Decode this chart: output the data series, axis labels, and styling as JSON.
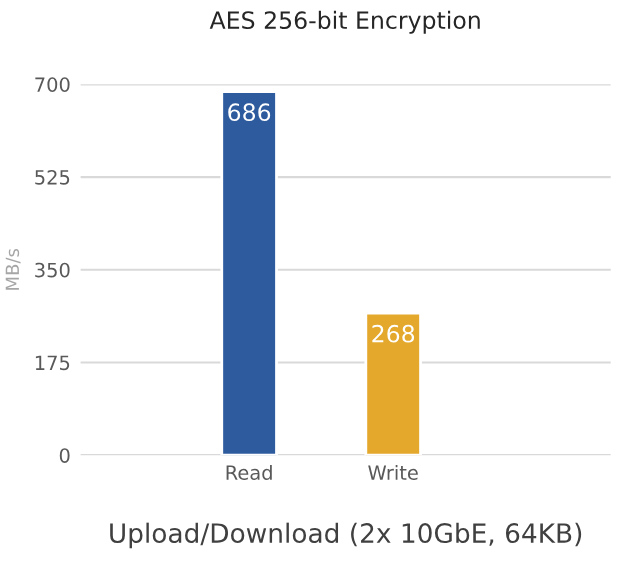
{
  "chart_data": {
    "type": "bar",
    "title": "AES 256-bit Encryption",
    "xlabel": "Upload/Download (2x 10GbE, 64KB)",
    "ylabel": "MB/s",
    "categories": [
      "Read",
      "Write"
    ],
    "values": [
      686,
      268
    ],
    "colors": [
      "#2e5b9e",
      "#e3a82c"
    ],
    "ylim": [
      0,
      700
    ],
    "yticks": [
      0,
      175,
      350,
      525,
      700
    ],
    "grid": "y",
    "data_labels": true
  }
}
